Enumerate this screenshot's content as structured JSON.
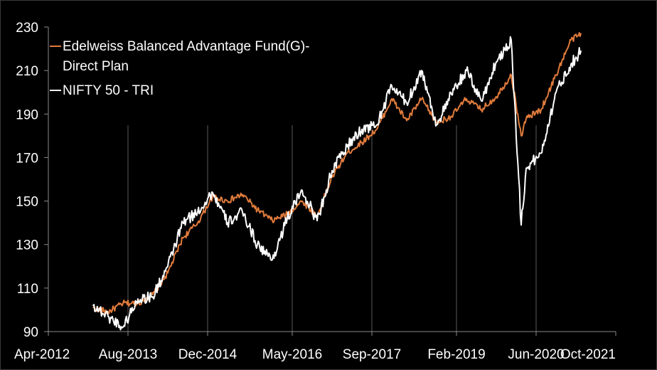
{
  "chart_data": {
    "type": "line",
    "title": "",
    "xlabel": "",
    "ylabel": "",
    "ylim": [
      90,
      230
    ],
    "yticks": [
      90,
      110,
      130,
      150,
      170,
      190,
      210,
      230
    ],
    "xticks": [
      "Apr-2012",
      "Aug-2013",
      "Dec-2014",
      "May-2016",
      "Sep-2017",
      "Feb-2019",
      "Jun-2020",
      "Oct-2021"
    ],
    "grid": "vertical",
    "legend_position": "top-left",
    "series": [
      {
        "name": "Edelweiss Balanced Advantage Fund(G)-Direct Plan",
        "color": "#e07b3c",
        "x": [
          "Jan-2013",
          "Apr-2013",
          "Jul-2013",
          "Oct-2013",
          "Jan-2014",
          "Apr-2014",
          "Jul-2014",
          "Oct-2014",
          "Jan-2015",
          "Apr-2015",
          "Jul-2015",
          "Oct-2015",
          "Jan-2016",
          "Apr-2016",
          "Jul-2016",
          "Oct-2016",
          "Jan-2017",
          "Apr-2017",
          "Jul-2017",
          "Oct-2017",
          "Jan-2018",
          "Apr-2018",
          "Jul-2018",
          "Oct-2018",
          "Jan-2019",
          "Apr-2019",
          "Jul-2019",
          "Oct-2019",
          "Jan-2020",
          "Mar-2020",
          "Apr-2020",
          "Jul-2020",
          "Oct-2020",
          "Jan-2021",
          "Mar-2021"
        ],
        "values": [
          101,
          99,
          103,
          103,
          107,
          117,
          133,
          140,
          152,
          150,
          153,
          146,
          141,
          144,
          150,
          143,
          161,
          172,
          177,
          183,
          197,
          187,
          197,
          186,
          189,
          197,
          192,
          198,
          208,
          180,
          188,
          192,
          208,
          224,
          227
        ]
      },
      {
        "name": "NIFTY 50 - TRI",
        "color": "#ffffff",
        "x": [
          "Jan-2013",
          "Apr-2013",
          "Jul-2013",
          "Oct-2013",
          "Jan-2014",
          "Apr-2014",
          "Jul-2014",
          "Oct-2014",
          "Jan-2015",
          "Apr-2015",
          "Jul-2015",
          "Oct-2015",
          "Jan-2016",
          "Apr-2016",
          "Jul-2016",
          "Oct-2016",
          "Jan-2017",
          "Apr-2017",
          "Jul-2017",
          "Oct-2017",
          "Jan-2018",
          "Apr-2018",
          "Jul-2018",
          "Oct-2018",
          "Jan-2019",
          "Apr-2019",
          "Jul-2019",
          "Oct-2019",
          "Jan-2020",
          "Mar-2020",
          "Apr-2020",
          "Jul-2020",
          "Oct-2020",
          "Jan-2021",
          "Mar-2021"
        ],
        "values": [
          102,
          97,
          92,
          105,
          106,
          120,
          140,
          145,
          154,
          140,
          145,
          130,
          123,
          142,
          155,
          141,
          164,
          175,
          183,
          185,
          203,
          195,
          210,
          185,
          199,
          210,
          196,
          214,
          224,
          139,
          165,
          172,
          200,
          213,
          219
        ]
      }
    ]
  }
}
